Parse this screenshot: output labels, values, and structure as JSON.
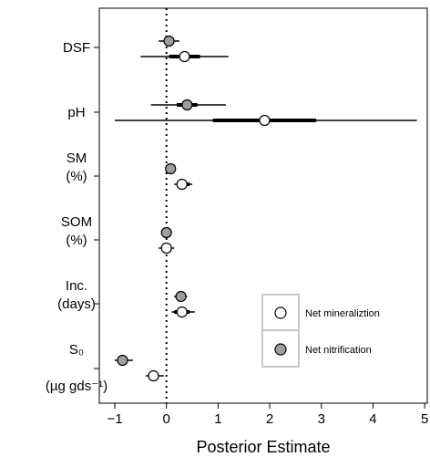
{
  "chart_data": {
    "type": "scatter",
    "title": "",
    "xlabel": "Posterior Estimate",
    "ylabel": "",
    "xlim": [
      -1.3,
      5.05
    ],
    "x_ticks": [
      -1,
      0,
      1,
      2,
      3,
      4,
      5
    ],
    "reference_line_x": 0,
    "grid": false,
    "legend_position": "bottom-right",
    "y_groups": [
      {
        "label_lines": [
          "DSF"
        ]
      },
      {
        "label_lines": [
          "pH"
        ]
      },
      {
        "label_lines": [
          "SM",
          "(%)"
        ]
      },
      {
        "label_lines": [
          "SOM",
          "(%)"
        ]
      },
      {
        "label_lines": [
          "Inc.",
          "(days)"
        ]
      },
      {
        "label_lines": [
          "S₀",
          "(µg gds⁻¹)"
        ]
      }
    ],
    "series": [
      {
        "name": "Net mineraliztion",
        "marker_color": "#ffffff",
        "points": [
          {
            "group": "DSF",
            "estimate": 0.35,
            "ci50": [
              0.05,
              0.65
            ],
            "ci95": [
              -0.5,
              1.2
            ]
          },
          {
            "group": "pH",
            "estimate": 1.9,
            "ci50": [
              0.9,
              2.9
            ],
            "ci95": [
              -1.0,
              4.85
            ]
          },
          {
            "group": "SM (%)",
            "estimate": 0.3,
            "ci50": [
              0.2,
              0.45
            ],
            "ci95": [
              0.15,
              0.5
            ]
          },
          {
            "group": "SOM (%)",
            "estimate": 0.0,
            "ci50": [
              -0.1,
              0.1
            ],
            "ci95": [
              -0.15,
              0.15
            ]
          },
          {
            "group": "Inc. (days)",
            "estimate": 0.3,
            "ci50": [
              0.15,
              0.45
            ],
            "ci95": [
              0.1,
              0.55
            ]
          },
          {
            "group": "S0",
            "estimate": -0.25,
            "ci50": [
              -0.35,
              -0.15
            ],
            "ci95": [
              -0.4,
              -0.05
            ]
          }
        ]
      },
      {
        "name": "Net nitrification",
        "marker_color": "#9e9e9e",
        "points": [
          {
            "group": "DSF",
            "estimate": 0.05,
            "ci50": [
              -0.05,
              0.15
            ],
            "ci95": [
              -0.15,
              0.25
            ]
          },
          {
            "group": "pH",
            "estimate": 0.4,
            "ci50": [
              0.2,
              0.6
            ],
            "ci95": [
              -0.3,
              1.15
            ]
          },
          {
            "group": "SM (%)",
            "estimate": 0.08,
            "ci50": [
              0.04,
              0.12
            ],
            "ci95": [
              0.0,
              0.15
            ]
          },
          {
            "group": "SOM (%)",
            "estimate": 0.0,
            "ci50": [
              -0.05,
              0.05
            ],
            "ci95": [
              -0.08,
              0.08
            ]
          },
          {
            "group": "Inc. (days)",
            "estimate": 0.28,
            "ci50": [
              0.2,
              0.36
            ],
            "ci95": [
              0.15,
              0.4
            ]
          },
          {
            "group": "S0",
            "estimate": -0.85,
            "ci50": [
              -0.95,
              -0.75
            ],
            "ci95": [
              -1.0,
              -0.65
            ]
          }
        ]
      }
    ]
  }
}
